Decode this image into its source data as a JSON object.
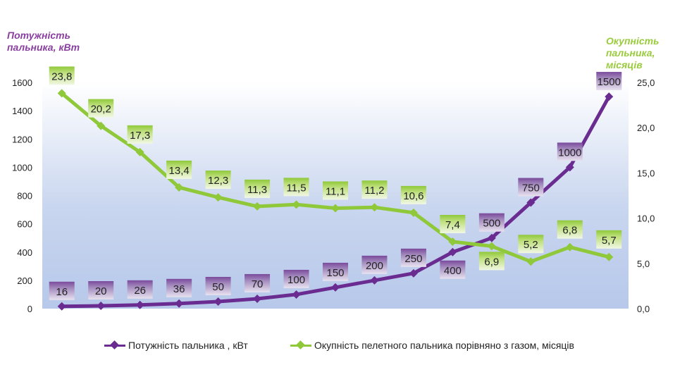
{
  "chart_data": {
    "type": "line",
    "left_axis_title": "Потужність пальника, кВт",
    "right_axis_title": "Окупність пальника, місяців",
    "y_left": {
      "min": 0,
      "max": 1600,
      "ticks": [
        "0",
        "200",
        "400",
        "600",
        "800",
        "1000",
        "1200",
        "1400",
        "1600"
      ]
    },
    "y_right": {
      "min": 0,
      "max": 25,
      "ticks": [
        "0,0",
        "5,0",
        "10,0",
        "15,0",
        "20,0",
        "25,0"
      ]
    },
    "series": [
      {
        "name": "Потужність пальника , кВт",
        "axis": "left",
        "color": "#6b2c91",
        "values": [
          16,
          20,
          26,
          36,
          50,
          70,
          100,
          150,
          200,
          250,
          400,
          500,
          750,
          1000,
          1500
        ],
        "labels": [
          "16",
          "20",
          "26",
          "36",
          "50",
          "70",
          "100",
          "150",
          "200",
          "250",
          "400",
          "500",
          "750",
          "1000",
          "1500"
        ]
      },
      {
        "name": "Окупність пелетного пальника порівняно з газом, місяців",
        "axis": "right",
        "color": "#8fc93a",
        "values": [
          23.8,
          20.2,
          17.3,
          13.4,
          12.3,
          11.3,
          11.5,
          11.1,
          11.2,
          10.6,
          7.4,
          6.9,
          5.2,
          6.8,
          5.7
        ],
        "labels": [
          "23,8",
          "20,2",
          "17,3",
          "13,4",
          "12,3",
          "11,3",
          "11,5",
          "11,1",
          "11,2",
          "10,6",
          "7,4",
          "6,9",
          "5,2",
          "6,8",
          "5,7"
        ]
      }
    ],
    "legend_position": "bottom",
    "grid": false
  }
}
